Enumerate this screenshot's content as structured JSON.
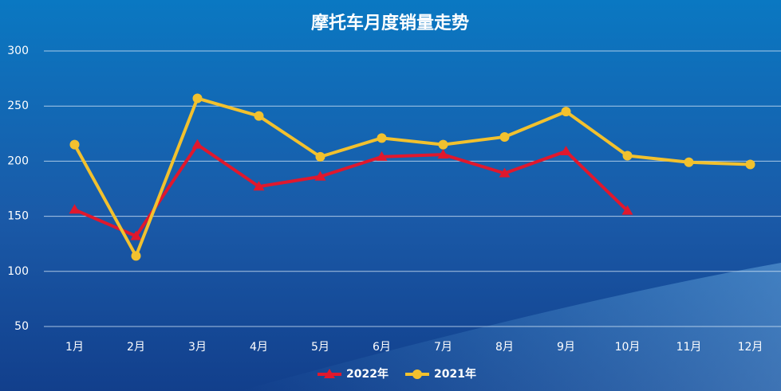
{
  "chart_data": {
    "type": "line",
    "title": "摩托车月度销量走势",
    "categories": [
      "1月",
      "2月",
      "3月",
      "4月",
      "5月",
      "6月",
      "7月",
      "8月",
      "9月",
      "10月",
      "11月",
      "12月"
    ],
    "series": [
      {
        "name": "2022年",
        "color": "#e0182d",
        "marker": "triangle",
        "values": [
          156,
          132,
          215,
          177,
          186,
          204,
          206,
          189,
          209,
          155,
          null,
          null
        ]
      },
      {
        "name": "2021年",
        "color": "#f2c12e",
        "marker": "circle",
        "values": [
          215,
          114,
          257,
          241,
          204,
          221,
          215,
          222,
          245,
          205,
          199,
          197
        ]
      }
    ],
    "ylim": [
      50,
      300
    ],
    "yticks": [
      50,
      100,
      150,
      200,
      250,
      300
    ],
    "grid": true,
    "legend": "bottom"
  }
}
